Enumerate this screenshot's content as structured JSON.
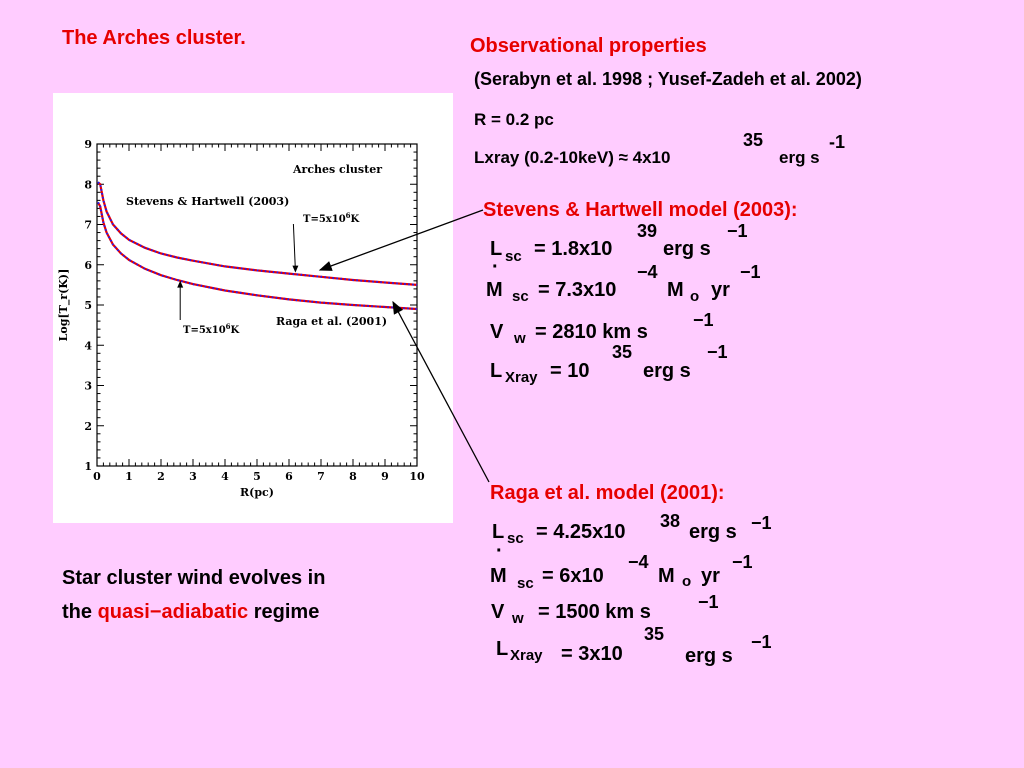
{
  "slide": {
    "title": "The Arches cluster.",
    "obs_heading": "Observational properties",
    "obs_refs": "(Serabyn et al. 1998 ; Yusef-Zadeh et al. 2002)",
    "obs_R": "R  =  0.2 pc",
    "obs_lx_prefix": "Lxray (0.2-10keV) ≈ 4x10",
    "obs_lx_exp": "35",
    "obs_lx_unit": "erg s",
    "obs_lx_unit_exp": "-1",
    "sh_heading": "Stevens & Hartwell model (2003):",
    "sh": {
      "L_sym": "L",
      "L_sub": "sc",
      "L_val": "= 1.8x10",
      "L_exp": "39",
      "L_unit": "erg s",
      "L_unit_exp": "−1",
      "dot": "·",
      "M_sym": "M",
      "M_sub": "sc",
      "M_val": "= 7.3x10",
      "M_exp": "−4",
      "M_unit": "M",
      "M_unit_sub": "o",
      "M_unit2": "yr",
      "M_unit2_exp": "−1",
      "V_sym": "V",
      "V_sub": "w",
      "V_val": "=  2810 km s",
      "V_exp": "−1",
      "X_sym": "L",
      "X_sub": "Xray",
      "X_val": "=  10",
      "X_exp": "35",
      "X_unit": "erg s",
      "X_unit_exp": "−1"
    },
    "raga_heading": "Raga et al. model (2001):",
    "raga": {
      "L_sym": "L",
      "L_sub": "sc",
      "L_val": "= 4.25x10",
      "L_exp": "38",
      "L_unit": "erg s",
      "L_unit_exp": "−1",
      "dot": "·",
      "M_sym": "M",
      "M_sub": "sc",
      "M_val": "= 6x10",
      "M_exp": "−4",
      "M_unit": "M",
      "M_unit_sub": "o",
      "M_unit2": "yr",
      "M_unit2_exp": "−1",
      "V_sym": "V",
      "V_sub": "w",
      "V_val": "=  1500 km s",
      "V_exp": "−1",
      "X_sym": "L",
      "X_sub": "Xray",
      "X_val": "= 3x10",
      "X_exp": "35",
      "X_unit": "erg s",
      "X_unit_exp": "−1"
    },
    "bottom_line1": "Star cluster wind evolves in",
    "bottom_the": "the ",
    "bottom_red": "quasi−adiabatic",
    "bottom_end": " regime",
    "colors": {
      "background": "#ffccff",
      "accent": "#e60000",
      "curve_red": "#e60000",
      "curve_blue": "#1a1aff"
    }
  },
  "chart_data": {
    "type": "line",
    "xlabel": "R(pc)",
    "ylabel": "Log[T_r(K)]",
    "xlim": [
      0,
      10
    ],
    "ylim": [
      1,
      9
    ],
    "xticks": [
      "0",
      "1",
      "2",
      "3",
      "4",
      "5",
      "6",
      "7",
      "8",
      "9",
      "10"
    ],
    "yticks": [
      "1",
      "2",
      "3",
      "4",
      "5",
      "6",
      "7",
      "8",
      "9"
    ],
    "series": [
      {
        "name": "Stevens & Hartwell (2003)",
        "x": [
          0.03,
          0.1,
          0.2,
          0.3,
          0.5,
          0.75,
          1,
          1.5,
          2,
          2.5,
          3,
          4,
          5,
          6,
          7,
          8,
          9,
          10
        ],
        "y": [
          8.05,
          8.0,
          7.6,
          7.32,
          7.0,
          6.78,
          6.62,
          6.42,
          6.28,
          6.18,
          6.1,
          5.96,
          5.86,
          5.78,
          5.7,
          5.62,
          5.56,
          5.5
        ]
      },
      {
        "name": "Raga et al. (2001)",
        "x": [
          0.03,
          0.1,
          0.2,
          0.3,
          0.5,
          0.75,
          1,
          1.5,
          2,
          2.5,
          3,
          4,
          5,
          6,
          7,
          8,
          9,
          10
        ],
        "y": [
          7.55,
          7.45,
          7.05,
          6.8,
          6.5,
          6.28,
          6.12,
          5.9,
          5.74,
          5.62,
          5.52,
          5.36,
          5.24,
          5.14,
          5.06,
          5.0,
          4.95,
          4.9
        ]
      }
    ],
    "annotations": [
      {
        "text": "Arches cluster"
      },
      {
        "text": "Stevens & Hartwell (2003)"
      },
      {
        "text": "T=5x10",
        "exp": "6",
        "suffix": "K",
        "x": 6.2,
        "y": 5.78
      },
      {
        "text": "T=5x10",
        "exp": "6",
        "suffix": "K",
        "x": 2.6,
        "y": 5.63
      },
      {
        "text": "Raga et al. (2001)"
      }
    ]
  }
}
